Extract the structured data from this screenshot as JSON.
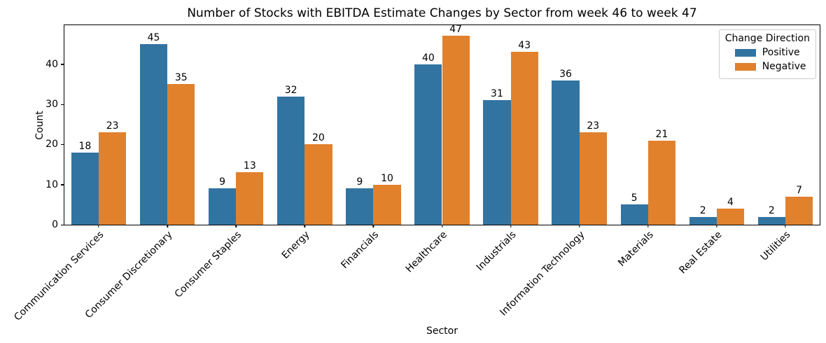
{
  "chart_data": {
    "type": "bar",
    "title": "Number of Stocks with EBITDA Estimate Changes by Sector from week 46 to week 47",
    "xlabel": "Sector",
    "ylabel": "Count",
    "categories": [
      "Communication Services",
      "Consumer Discretionary",
      "Consumer Staples",
      "Energy",
      "Financials",
      "Healthcare",
      "Industrials",
      "Information Technology",
      "Materials",
      "Real Estate",
      "Utilities"
    ],
    "series": [
      {
        "name": "Positive",
        "color": "#3274a1",
        "values": [
          18,
          45,
          9,
          32,
          9,
          40,
          31,
          36,
          5,
          2,
          2
        ]
      },
      {
        "name": "Negative",
        "color": "#e1812c",
        "values": [
          23,
          35,
          13,
          20,
          10,
          47,
          43,
          23,
          21,
          4,
          7
        ]
      }
    ],
    "ylim": [
      0,
      49.7
    ],
    "yticks": [
      0,
      10,
      20,
      30,
      40
    ],
    "xtick_rotation": 45,
    "grid": false,
    "bar_labels": true,
    "legend": {
      "title": "Change Direction",
      "position": "upper right"
    }
  }
}
